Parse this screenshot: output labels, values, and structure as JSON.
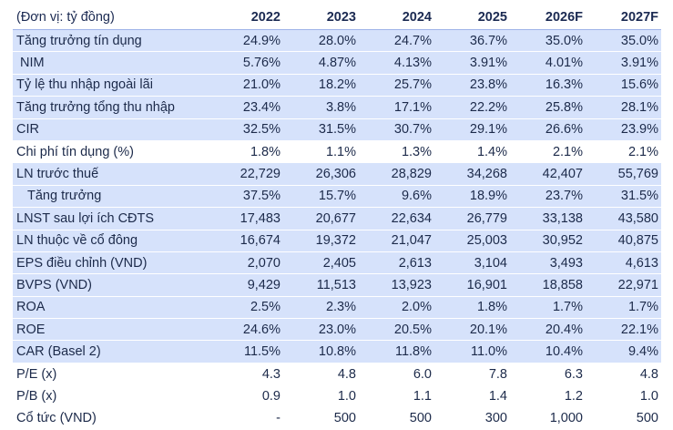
{
  "table": {
    "unit_label": "(Đơn vị: tỷ đồng)",
    "years": [
      "2022",
      "2023",
      "2024",
      "2025",
      "2026F",
      "2027F"
    ],
    "rows": [
      {
        "label": "Tăng trưởng tín dụng",
        "values": [
          "24.9%",
          "28.0%",
          "24.7%",
          "36.7%",
          "35.0%",
          "35.0%"
        ]
      },
      {
        "label": "NIM",
        "values": [
          "5.76%",
          "4.87%",
          "4.13%",
          "3.91%",
          "4.01%",
          "3.91%"
        ]
      },
      {
        "label": "Tỷ lệ thu nhập ngoài lãi",
        "values": [
          "21.0%",
          "18.2%",
          "25.7%",
          "23.8%",
          "16.3%",
          "15.6%"
        ]
      },
      {
        "label": "Tăng trưởng tổng thu nhập",
        "values": [
          "23.4%",
          "3.8%",
          "17.1%",
          "22.2%",
          "25.8%",
          "28.1%"
        ]
      },
      {
        "label": "CIR",
        "values": [
          "32.5%",
          "31.5%",
          "30.7%",
          "29.1%",
          "26.6%",
          "23.9%"
        ]
      },
      {
        "label": "Chi phí tín dụng (%)",
        "values": [
          "1.8%",
          "1.1%",
          "1.3%",
          "1.4%",
          "2.1%",
          "2.1%"
        ]
      },
      {
        "label": "LN trước thuế",
        "values": [
          "22,729",
          "26,306",
          "28,829",
          "34,268",
          "42,407",
          "55,769"
        ]
      },
      {
        "label": "Tăng trưởng",
        "values": [
          "37.5%",
          "15.7%",
          "9.6%",
          "18.9%",
          "23.7%",
          "31.5%"
        ]
      },
      {
        "label": "LNST sau lợi ích CĐTS",
        "values": [
          "17,483",
          "20,677",
          "22,634",
          "26,779",
          "33,138",
          "43,580"
        ]
      },
      {
        "label": "LN thuộc về cổ đông",
        "values": [
          "16,674",
          "19,372",
          "21,047",
          "25,003",
          "30,952",
          "40,875"
        ]
      },
      {
        "label": "EPS điều chỉnh (VND)",
        "values": [
          "2,070",
          "2,405",
          "2,613",
          "3,104",
          "3,493",
          "4,613"
        ]
      },
      {
        "label": "BVPS (VND)",
        "values": [
          "9,429",
          "11,513",
          "13,923",
          "16,901",
          "18,858",
          "22,971"
        ]
      },
      {
        "label": "ROA",
        "values": [
          "2.5%",
          "2.3%",
          "2.0%",
          "1.8%",
          "1.7%",
          "1.7%"
        ]
      },
      {
        "label": "ROE",
        "values": [
          "24.6%",
          "23.0%",
          "20.5%",
          "20.1%",
          "20.4%",
          "22.1%"
        ]
      },
      {
        "label": "CAR (Basel 2)",
        "values": [
          "11.5%",
          "10.8%",
          "11.8%",
          "11.0%",
          "10.4%",
          "9.4%"
        ]
      },
      {
        "label": "P/E (x)",
        "values": [
          "4.3",
          "4.8",
          "6.0",
          "7.8",
          "6.3",
          "4.8"
        ]
      },
      {
        "label": "P/B (x)",
        "values": [
          "0.9",
          "1.0",
          "1.1",
          "1.4",
          "1.2",
          "1.0"
        ]
      },
      {
        "label": "Cổ tức (VND)",
        "values": [
          "-",
          "500",
          "500",
          "300",
          "1,000",
          "500"
        ]
      }
    ]
  },
  "colors": {
    "shaded_row": "#d6e2fb",
    "text": "#1c2a4a",
    "header_text": "#1b2a52"
  }
}
